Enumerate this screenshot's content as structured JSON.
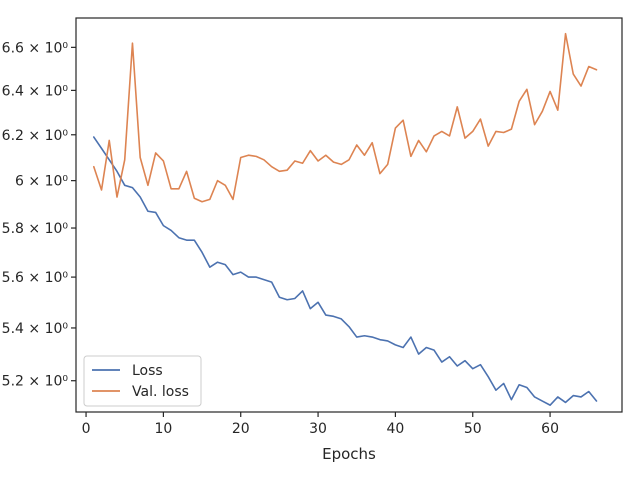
{
  "chart_data": {
    "type": "line",
    "title": "",
    "xlabel": "Epochs",
    "ylabel": "",
    "xlim": [
      -1.3,
      69.3
    ],
    "ylim": [
      5.085,
      6.74
    ],
    "y_scale": "log",
    "x_ticks": [
      0,
      10,
      20,
      30,
      40,
      50,
      60
    ],
    "y_ticks": [
      {
        "value": 5.2,
        "label": "5.2 × 10⁰"
      },
      {
        "value": 5.4,
        "label": "5.4 × 10⁰"
      },
      {
        "value": 5.6,
        "label": "5.6 × 10⁰"
      },
      {
        "value": 5.8,
        "label": "5.8 × 10⁰"
      },
      {
        "value": 6.0,
        "label": "6 × 10⁰"
      },
      {
        "value": 6.2,
        "label": "6.2 × 10⁰"
      },
      {
        "value": 6.4,
        "label": "6.4 × 10⁰"
      },
      {
        "value": 6.6,
        "label": "6.6 × 10⁰"
      }
    ],
    "grid": false,
    "legend_position": "lower-left",
    "x": [
      1,
      2,
      3,
      4,
      5,
      6,
      7,
      8,
      9,
      10,
      11,
      12,
      13,
      14,
      15,
      16,
      17,
      18,
      19,
      20,
      21,
      22,
      23,
      24,
      25,
      26,
      27,
      28,
      29,
      30,
      31,
      32,
      33,
      34,
      35,
      36,
      37,
      38,
      39,
      40,
      41,
      42,
      43,
      44,
      45,
      46,
      47,
      48,
      49,
      50,
      51,
      52,
      53,
      54,
      55,
      56,
      57,
      58,
      59,
      60,
      61,
      62,
      63,
      64,
      65,
      66
    ],
    "series": [
      {
        "name": "Loss",
        "color": "#4c72b0",
        "values": [
          6.19,
          6.14,
          6.09,
          6.04,
          5.98,
          5.97,
          5.93,
          5.87,
          5.865,
          5.81,
          5.79,
          5.76,
          5.75,
          5.75,
          5.7,
          5.64,
          5.66,
          5.65,
          5.61,
          5.62,
          5.6,
          5.6,
          5.59,
          5.58,
          5.52,
          5.51,
          5.515,
          5.545,
          5.475,
          5.5,
          5.45,
          5.445,
          5.435,
          5.405,
          5.365,
          5.37,
          5.365,
          5.355,
          5.35,
          5.335,
          5.325,
          5.365,
          5.3,
          5.325,
          5.315,
          5.27,
          5.29,
          5.255,
          5.275,
          5.245,
          5.26,
          5.215,
          5.165,
          5.19,
          5.13,
          5.185,
          5.175,
          5.14,
          5.125,
          5.11,
          5.14,
          5.12,
          5.145,
          5.14,
          5.16,
          5.125
        ]
      },
      {
        "name": "Val. loss",
        "color": "#dd8452",
        "values": [
          6.06,
          5.96,
          6.175,
          5.93,
          6.09,
          6.62,
          6.1,
          5.98,
          6.12,
          6.085,
          5.965,
          5.965,
          6.04,
          5.925,
          5.91,
          5.92,
          6.0,
          5.98,
          5.92,
          6.1,
          6.11,
          6.105,
          6.09,
          6.06,
          6.04,
          6.045,
          6.085,
          6.075,
          6.13,
          6.085,
          6.11,
          6.08,
          6.07,
          6.09,
          6.155,
          6.11,
          6.165,
          6.03,
          6.07,
          6.23,
          6.265,
          6.105,
          6.175,
          6.125,
          6.195,
          6.215,
          6.195,
          6.325,
          6.185,
          6.215,
          6.27,
          6.15,
          6.215,
          6.21,
          6.225,
          6.35,
          6.405,
          6.245,
          6.305,
          6.395,
          6.31,
          6.665,
          6.475,
          6.42,
          6.51,
          6.495
        ]
      }
    ]
  }
}
